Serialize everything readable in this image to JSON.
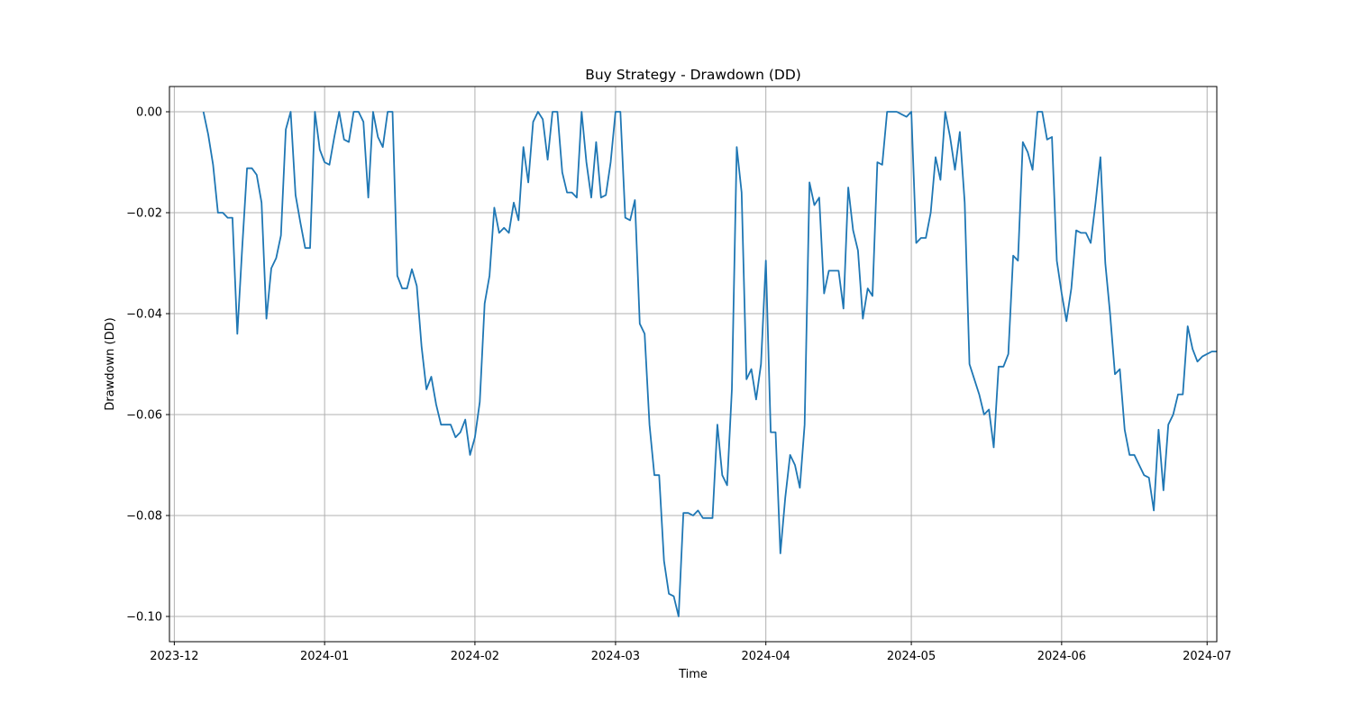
{
  "chart_data": {
    "type": "line",
    "title": "Buy Strategy - Drawdown (DD)",
    "xlabel": "Time",
    "ylabel": "Drawdown (DD)",
    "x_scale": "date",
    "xlim": [
      "2023-11-30",
      "2024-07-03"
    ],
    "ylim": [
      -0.105,
      0.005
    ],
    "xticks": [
      {
        "label": "2023-12",
        "date": "2023-12-01"
      },
      {
        "label": "2024-01",
        "date": "2024-01-01"
      },
      {
        "label": "2024-02",
        "date": "2024-02-01"
      },
      {
        "label": "2024-03",
        "date": "2024-03-01"
      },
      {
        "label": "2024-04",
        "date": "2024-04-01"
      },
      {
        "label": "2024-05",
        "date": "2024-05-01"
      },
      {
        "label": "2024-06",
        "date": "2024-06-01"
      },
      {
        "label": "2024-07",
        "date": "2024-07-01"
      }
    ],
    "yticks": [
      {
        "label": "0.00",
        "value": 0
      },
      {
        "label": "−0.02",
        "value": -0.02
      },
      {
        "label": "−0.04",
        "value": -0.04
      },
      {
        "label": "−0.06",
        "value": -0.06
      },
      {
        "label": "−0.08",
        "value": -0.08
      },
      {
        "label": "−0.10",
        "value": -0.1
      }
    ],
    "grid": true,
    "legend": "none",
    "series": [
      {
        "color": "#1f77b4",
        "points": [
          [
            "2023-12-07",
            0.0
          ],
          [
            "2023-12-08",
            -0.0045
          ],
          [
            "2023-12-09",
            -0.0105
          ],
          [
            "2023-12-10",
            -0.02
          ],
          [
            "2023-12-11",
            -0.02
          ],
          [
            "2023-12-12",
            -0.021
          ],
          [
            "2023-12-13",
            -0.021
          ],
          [
            "2023-12-14",
            -0.044
          ],
          [
            "2023-12-15",
            -0.027
          ],
          [
            "2023-12-16",
            -0.0112
          ],
          [
            "2023-12-17",
            -0.0112
          ],
          [
            "2023-12-18",
            -0.0125
          ],
          [
            "2023-12-19",
            -0.018
          ],
          [
            "2023-12-20",
            -0.041
          ],
          [
            "2023-12-21",
            -0.031
          ],
          [
            "2023-12-22",
            -0.029
          ],
          [
            "2023-12-23",
            -0.0245
          ],
          [
            "2023-12-24",
            -0.0035
          ],
          [
            "2023-12-25",
            0.0
          ],
          [
            "2023-12-26",
            -0.0165
          ],
          [
            "2023-12-27",
            -0.022
          ],
          [
            "2023-12-28",
            -0.027
          ],
          [
            "2023-12-29",
            -0.027
          ],
          [
            "2023-12-30",
            0.0
          ],
          [
            "2023-12-31",
            -0.0075
          ],
          [
            "2024-01-01",
            -0.01
          ],
          [
            "2024-01-02",
            -0.0105
          ],
          [
            "2024-01-03",
            -0.005
          ],
          [
            "2024-01-04",
            0.0
          ],
          [
            "2024-01-05",
            -0.0055
          ],
          [
            "2024-01-06",
            -0.006
          ],
          [
            "2024-01-07",
            0.0
          ],
          [
            "2024-01-08",
            0.0
          ],
          [
            "2024-01-09",
            -0.002
          ],
          [
            "2024-01-10",
            -0.017
          ],
          [
            "2024-01-11",
            0.0
          ],
          [
            "2024-01-12",
            -0.005
          ],
          [
            "2024-01-13",
            -0.007
          ],
          [
            "2024-01-14",
            0.0
          ],
          [
            "2024-01-15",
            0.0
          ],
          [
            "2024-01-16",
            -0.0325
          ],
          [
            "2024-01-17",
            -0.035
          ],
          [
            "2024-01-18",
            -0.035
          ],
          [
            "2024-01-19",
            -0.0312
          ],
          [
            "2024-01-20",
            -0.0345
          ],
          [
            "2024-01-21",
            -0.0465
          ],
          [
            "2024-01-22",
            -0.055
          ],
          [
            "2024-01-23",
            -0.0525
          ],
          [
            "2024-01-24",
            -0.058
          ],
          [
            "2024-01-25",
            -0.062
          ],
          [
            "2024-01-26",
            -0.062
          ],
          [
            "2024-01-27",
            -0.062
          ],
          [
            "2024-01-28",
            -0.0645
          ],
          [
            "2024-01-29",
            -0.0635
          ],
          [
            "2024-01-30",
            -0.061
          ],
          [
            "2024-01-31",
            -0.068
          ],
          [
            "2024-02-01",
            -0.0645
          ],
          [
            "2024-02-02",
            -0.0575
          ],
          [
            "2024-02-03",
            -0.038
          ],
          [
            "2024-02-04",
            -0.0325
          ],
          [
            "2024-02-05",
            -0.019
          ],
          [
            "2024-02-06",
            -0.024
          ],
          [
            "2024-02-07",
            -0.023
          ],
          [
            "2024-02-08",
            -0.024
          ],
          [
            "2024-02-09",
            -0.018
          ],
          [
            "2024-02-10",
            -0.0215
          ],
          [
            "2024-02-11",
            -0.007
          ],
          [
            "2024-02-12",
            -0.014
          ],
          [
            "2024-02-13",
            -0.002
          ],
          [
            "2024-02-14",
            0.0
          ],
          [
            "2024-02-15",
            -0.0015
          ],
          [
            "2024-02-16",
            -0.0095
          ],
          [
            "2024-02-17",
            0.0
          ],
          [
            "2024-02-18",
            0.0
          ],
          [
            "2024-02-19",
            -0.012
          ],
          [
            "2024-02-20",
            -0.016
          ],
          [
            "2024-02-21",
            -0.016
          ],
          [
            "2024-02-22",
            -0.017
          ],
          [
            "2024-02-23",
            0.0
          ],
          [
            "2024-02-24",
            -0.01
          ],
          [
            "2024-02-25",
            -0.017
          ],
          [
            "2024-02-26",
            -0.006
          ],
          [
            "2024-02-27",
            -0.017
          ],
          [
            "2024-02-28",
            -0.0165
          ],
          [
            "2024-02-29",
            -0.01
          ],
          [
            "2024-03-01",
            0.0
          ],
          [
            "2024-03-02",
            0.0
          ],
          [
            "2024-03-03",
            -0.021
          ],
          [
            "2024-03-04",
            -0.0215
          ],
          [
            "2024-03-05",
            -0.0175
          ],
          [
            "2024-03-06",
            -0.042
          ],
          [
            "2024-03-07",
            -0.044
          ],
          [
            "2024-03-08",
            -0.062
          ],
          [
            "2024-03-09",
            -0.072
          ],
          [
            "2024-03-10",
            -0.072
          ],
          [
            "2024-03-11",
            -0.089
          ],
          [
            "2024-03-12",
            -0.0955
          ],
          [
            "2024-03-13",
            -0.096
          ],
          [
            "2024-03-14",
            -0.1
          ],
          [
            "2024-03-15",
            -0.0795
          ],
          [
            "2024-03-16",
            -0.0795
          ],
          [
            "2024-03-17",
            -0.08
          ],
          [
            "2024-03-18",
            -0.079
          ],
          [
            "2024-03-19",
            -0.0805
          ],
          [
            "2024-03-20",
            -0.0805
          ],
          [
            "2024-03-21",
            -0.0805
          ],
          [
            "2024-03-22",
            -0.062
          ],
          [
            "2024-03-23",
            -0.072
          ],
          [
            "2024-03-24",
            -0.074
          ],
          [
            "2024-03-25",
            -0.055
          ],
          [
            "2024-03-26",
            -0.007
          ],
          [
            "2024-03-27",
            -0.016
          ],
          [
            "2024-03-28",
            -0.053
          ],
          [
            "2024-03-29",
            -0.051
          ],
          [
            "2024-03-30",
            -0.057
          ],
          [
            "2024-03-31",
            -0.05
          ],
          [
            "2024-04-01",
            -0.0295
          ],
          [
            "2024-04-02",
            -0.0635
          ],
          [
            "2024-04-03",
            -0.0635
          ],
          [
            "2024-04-04",
            -0.0875
          ],
          [
            "2024-04-05",
            -0.0765
          ],
          [
            "2024-04-06",
            -0.068
          ],
          [
            "2024-04-07",
            -0.07
          ],
          [
            "2024-04-08",
            -0.0745
          ],
          [
            "2024-04-09",
            -0.062
          ],
          [
            "2024-04-10",
            -0.014
          ],
          [
            "2024-04-11",
            -0.0185
          ],
          [
            "2024-04-12",
            -0.017
          ],
          [
            "2024-04-13",
            -0.036
          ],
          [
            "2024-04-14",
            -0.0315
          ],
          [
            "2024-04-15",
            -0.0315
          ],
          [
            "2024-04-16",
            -0.0315
          ],
          [
            "2024-04-17",
            -0.039
          ],
          [
            "2024-04-18",
            -0.015
          ],
          [
            "2024-04-19",
            -0.0235
          ],
          [
            "2024-04-20",
            -0.0275
          ],
          [
            "2024-04-21",
            -0.041
          ],
          [
            "2024-04-22",
            -0.035
          ],
          [
            "2024-04-23",
            -0.0365
          ],
          [
            "2024-04-24",
            -0.01
          ],
          [
            "2024-04-25",
            -0.0105
          ],
          [
            "2024-04-26",
            0.0
          ],
          [
            "2024-04-27",
            0.0
          ],
          [
            "2024-04-28",
            0.0
          ],
          [
            "2024-04-29",
            -0.0005
          ],
          [
            "2024-04-30",
            -0.001
          ],
          [
            "2024-05-01",
            0.0
          ],
          [
            "2024-05-02",
            -0.026
          ],
          [
            "2024-05-03",
            -0.025
          ],
          [
            "2024-05-04",
            -0.025
          ],
          [
            "2024-05-05",
            -0.02
          ],
          [
            "2024-05-06",
            -0.009
          ],
          [
            "2024-05-07",
            -0.0135
          ],
          [
            "2024-05-08",
            0.0
          ],
          [
            "2024-05-09",
            -0.005
          ],
          [
            "2024-05-10",
            -0.0115
          ],
          [
            "2024-05-11",
            -0.004
          ],
          [
            "2024-05-12",
            -0.018
          ],
          [
            "2024-05-13",
            -0.05
          ],
          [
            "2024-05-14",
            -0.053
          ],
          [
            "2024-05-15",
            -0.056
          ],
          [
            "2024-05-16",
            -0.06
          ],
          [
            "2024-05-17",
            -0.059
          ],
          [
            "2024-05-18",
            -0.0665
          ],
          [
            "2024-05-19",
            -0.0505
          ],
          [
            "2024-05-20",
            -0.0505
          ],
          [
            "2024-05-21",
            -0.048
          ],
          [
            "2024-05-22",
            -0.0285
          ],
          [
            "2024-05-23",
            -0.0295
          ],
          [
            "2024-05-24",
            -0.006
          ],
          [
            "2024-05-25",
            -0.008
          ],
          [
            "2024-05-26",
            -0.0115
          ],
          [
            "2024-05-27",
            0.0
          ],
          [
            "2024-05-28",
            0.0
          ],
          [
            "2024-05-29",
            -0.0055
          ],
          [
            "2024-05-30",
            -0.005
          ],
          [
            "2024-05-31",
            -0.0295
          ],
          [
            "2024-06-01",
            -0.036
          ],
          [
            "2024-06-02",
            -0.0415
          ],
          [
            "2024-06-03",
            -0.035
          ],
          [
            "2024-06-04",
            -0.0235
          ],
          [
            "2024-06-05",
            -0.024
          ],
          [
            "2024-06-06",
            -0.024
          ],
          [
            "2024-06-07",
            -0.026
          ],
          [
            "2024-06-08",
            -0.018
          ],
          [
            "2024-06-09",
            -0.009
          ],
          [
            "2024-06-10",
            -0.03
          ],
          [
            "2024-06-11",
            -0.04
          ],
          [
            "2024-06-12",
            -0.052
          ],
          [
            "2024-06-13",
            -0.051
          ],
          [
            "2024-06-14",
            -0.063
          ],
          [
            "2024-06-15",
            -0.068
          ],
          [
            "2024-06-16",
            -0.068
          ],
          [
            "2024-06-17",
            -0.07
          ],
          [
            "2024-06-18",
            -0.072
          ],
          [
            "2024-06-19",
            -0.0725
          ],
          [
            "2024-06-20",
            -0.079
          ],
          [
            "2024-06-21",
            -0.063
          ],
          [
            "2024-06-22",
            -0.075
          ],
          [
            "2024-06-23",
            -0.062
          ],
          [
            "2024-06-24",
            -0.06
          ],
          [
            "2024-06-25",
            -0.056
          ],
          [
            "2024-06-26",
            -0.056
          ],
          [
            "2024-06-27",
            -0.0425
          ],
          [
            "2024-06-28",
            -0.047
          ],
          [
            "2024-06-29",
            -0.0495
          ],
          [
            "2024-06-30",
            -0.0485
          ],
          [
            "2024-07-01",
            -0.048
          ],
          [
            "2024-07-02",
            -0.0475
          ],
          [
            "2024-07-03",
            -0.0475
          ]
        ]
      }
    ]
  }
}
